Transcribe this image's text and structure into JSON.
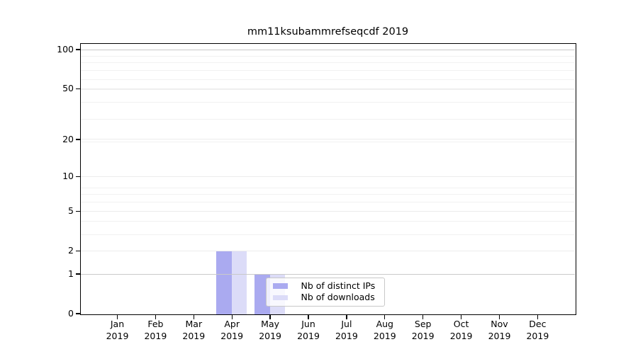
{
  "figure": {
    "title": "mm11ksubammrefseqcdf 2019"
  },
  "legend": {
    "items": [
      {
        "label": "Nb of distinct IPs",
        "color": "#aaaaf0"
      },
      {
        "label": "Nb of downloads",
        "color": "#dcdcf8"
      }
    ]
  },
  "axes": {
    "y_tick_labels": [
      "100",
      "50",
      "20",
      "10",
      "5",
      "2",
      "1",
      "0"
    ],
    "y_tick_values": [
      100,
      50,
      20,
      10,
      5,
      2,
      1,
      0
    ],
    "x_months": [
      "Jan",
      "Feb",
      "Mar",
      "Apr",
      "May",
      "Jun",
      "Jul",
      "Aug",
      "Sep",
      "Oct",
      "Nov",
      "Dec"
    ],
    "x_year": "2019"
  },
  "chart_data": {
    "type": "bar",
    "title": "mm11ksubammrefseqcdf 2019",
    "categories": [
      "Jan 2019",
      "Feb 2019",
      "Mar 2019",
      "Apr 2019",
      "May 2019",
      "Jun 2019",
      "Jul 2019",
      "Aug 2019",
      "Sep 2019",
      "Oct 2019",
      "Nov 2019",
      "Dec 2019"
    ],
    "series": [
      {
        "name": "Nb of distinct IPs",
        "color": "#aaaaf0",
        "values": [
          0,
          0,
          0,
          2,
          1,
          0,
          0,
          0,
          0,
          0,
          0,
          0
        ]
      },
      {
        "name": "Nb of downloads",
        "color": "#dcdcf8",
        "values": [
          0,
          0,
          0,
          2,
          1,
          0,
          0,
          0,
          0,
          0,
          0,
          0
        ]
      }
    ],
    "xlabel": "",
    "ylabel": "",
    "yscale": "log1p",
    "yticks": [
      0,
      1,
      2,
      5,
      10,
      20,
      50,
      100
    ],
    "ylim": [
      0,
      110.5
    ],
    "grid": true,
    "legend_position": "inside lower center"
  }
}
